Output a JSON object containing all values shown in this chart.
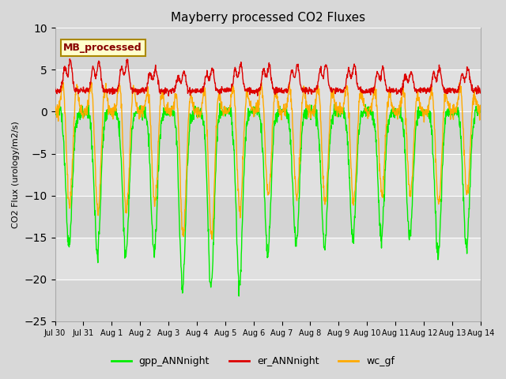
{
  "title": "Mayberry processed CO2 Fluxes",
  "ylabel": "CO2 Flux (urology/m2/s)",
  "ylim": [
    -25,
    10
  ],
  "yticks": [
    -25,
    -20,
    -15,
    -10,
    -5,
    0,
    5,
    10
  ],
  "xlim": [
    0,
    15
  ],
  "xtick_labels": [
    "Jul 30",
    "Jul 31",
    "Aug 1",
    "Aug 2",
    "Aug 3",
    "Aug 4",
    "Aug 5",
    "Aug 6",
    "Aug 7",
    "Aug 8",
    "Aug 9",
    "Aug 10",
    "Aug 11",
    "Aug 12",
    "Aug 13",
    "Aug 14"
  ],
  "legend_labels": [
    "gpp_ANNnight",
    "er_ANNnight",
    "wc_gf"
  ],
  "legend_colors": [
    "#00ee00",
    "#dd0000",
    "#ffaa00"
  ],
  "line_colors_gpp": "#00ee00",
  "line_colors_er": "#dd0000",
  "line_colors_wc": "#ffaa00",
  "annotation_text": "MB_processed",
  "annotation_facecolor": "#ffffcc",
  "annotation_edgecolor": "#aa8800",
  "annotation_textcolor": "#880000",
  "plot_bg_color": "#d8d8d8",
  "band_light": "#e8e8e8",
  "band_dark": "#c8c8c8",
  "linewidth": 1.0,
  "n_days": 15,
  "pts_per_day": 96
}
